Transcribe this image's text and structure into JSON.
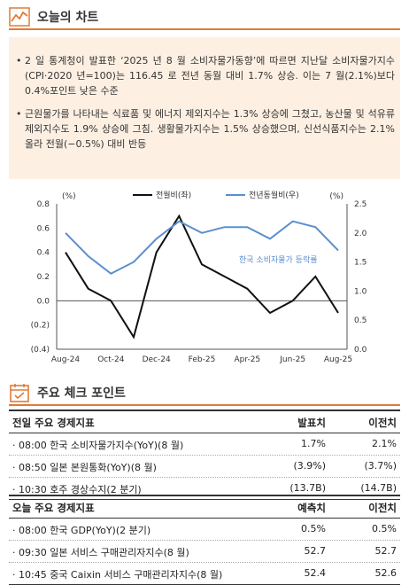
{
  "chart_section": {
    "title": "오늘의 차트",
    "icon": "trend-chart-icon",
    "bullets": [
      "2 일 통계청이 발표한 ‘2025 년 8 월 소비자물가동향’에 따르면 지난달 소비자물가지수(CPI·2020 년=100)는 116.45 로 전년 동월 대비 1.7% 상승. 이는 7 월(2.1%)보다 0.4%포인트 낮은 수준",
      "근원물가를 나타내는 식료품 및 에너지 제외지수는 1.3% 상승에 그쳤고, 농산물 및 석유류 제외지수도 1.9% 상승에 그침. 생활물가지수는 1.5% 상승했으며, 신선식품지수는 2.1% 올라 전월(−0.5%) 대비 반등"
    ]
  },
  "chart_data": {
    "type": "line",
    "title": "",
    "annotation": "한국 소비자물가 등락률",
    "left_axis": {
      "unit": "(%)",
      "min": -0.4,
      "max": 0.8,
      "ticks": [
        "(0.4)",
        "(0.2)",
        "0.0",
        "0.2",
        "0.4",
        "0.6",
        "0.8"
      ]
    },
    "right_axis": {
      "unit": "(%)",
      "min": 0.0,
      "max": 2.5,
      "ticks": [
        "0.0",
        "0.5",
        "1.0",
        "1.5",
        "2.0",
        "2.5"
      ]
    },
    "x_tick_labels": [
      "Aug-24",
      "Oct-24",
      "Dec-24",
      "Feb-25",
      "Apr-25",
      "Jun-25",
      "Aug-25"
    ],
    "x": [
      "Aug-24",
      "Sep-24",
      "Oct-24",
      "Nov-24",
      "Dec-24",
      "Jan-25",
      "Feb-25",
      "Mar-25",
      "Apr-25",
      "May-25",
      "Jun-25",
      "Jul-25",
      "Aug-25"
    ],
    "series": [
      {
        "name": "전월비(좌)",
        "axis": "left",
        "color": "#111111",
        "values": [
          0.4,
          0.1,
          0.0,
          -0.3,
          0.4,
          0.7,
          0.3,
          0.2,
          0.1,
          -0.1,
          0.0,
          0.2,
          -0.1
        ]
      },
      {
        "name": "전년동월비(우)",
        "axis": "right",
        "color": "#5b8fd0",
        "values": [
          2.0,
          1.6,
          1.3,
          1.5,
          1.9,
          2.2,
          2.0,
          2.1,
          2.1,
          1.9,
          2.2,
          2.1,
          1.7
        ]
      }
    ],
    "legend": "top",
    "grid": false
  },
  "checkpoints": {
    "title": "주요 체크 포인트",
    "icon": "calendar-check-icon",
    "past": {
      "header": [
        "전일 주요 경제지표",
        "발표치",
        "이전치"
      ],
      "rows": [
        [
          "· 08:00 한국 소비자물가지수(YoY)(8 월)",
          "1.7%",
          "2.1%"
        ],
        [
          "· 08:50 일본 본원통화(YoY)(8 월)",
          "(3.9%)",
          "(3.7%)"
        ],
        [
          "· 10:30 호주 경상수지(2 분기)",
          "(13.7B)",
          "(14.7B)"
        ]
      ]
    },
    "today": {
      "header": [
        "오늘 주요 경제지표",
        "예측치",
        "이전치"
      ],
      "rows": [
        [
          "· 08:00 한국 GDP(YoY)(2 분기)",
          "0.5%",
          "0.5%"
        ],
        [
          "· 09:30 일본 서비스 구매관리자지수(8 월)",
          "52.7",
          "52.7"
        ],
        [
          "· 10:45 중국 Caixin 서비스 구매관리자지수(8 월)",
          "52.4",
          "52.6"
        ]
      ]
    }
  },
  "colors": {
    "accent": "#e07b39",
    "summary_bg": "#fdf0e3",
    "series_black": "#111111",
    "series_blue": "#5b8fd0"
  }
}
